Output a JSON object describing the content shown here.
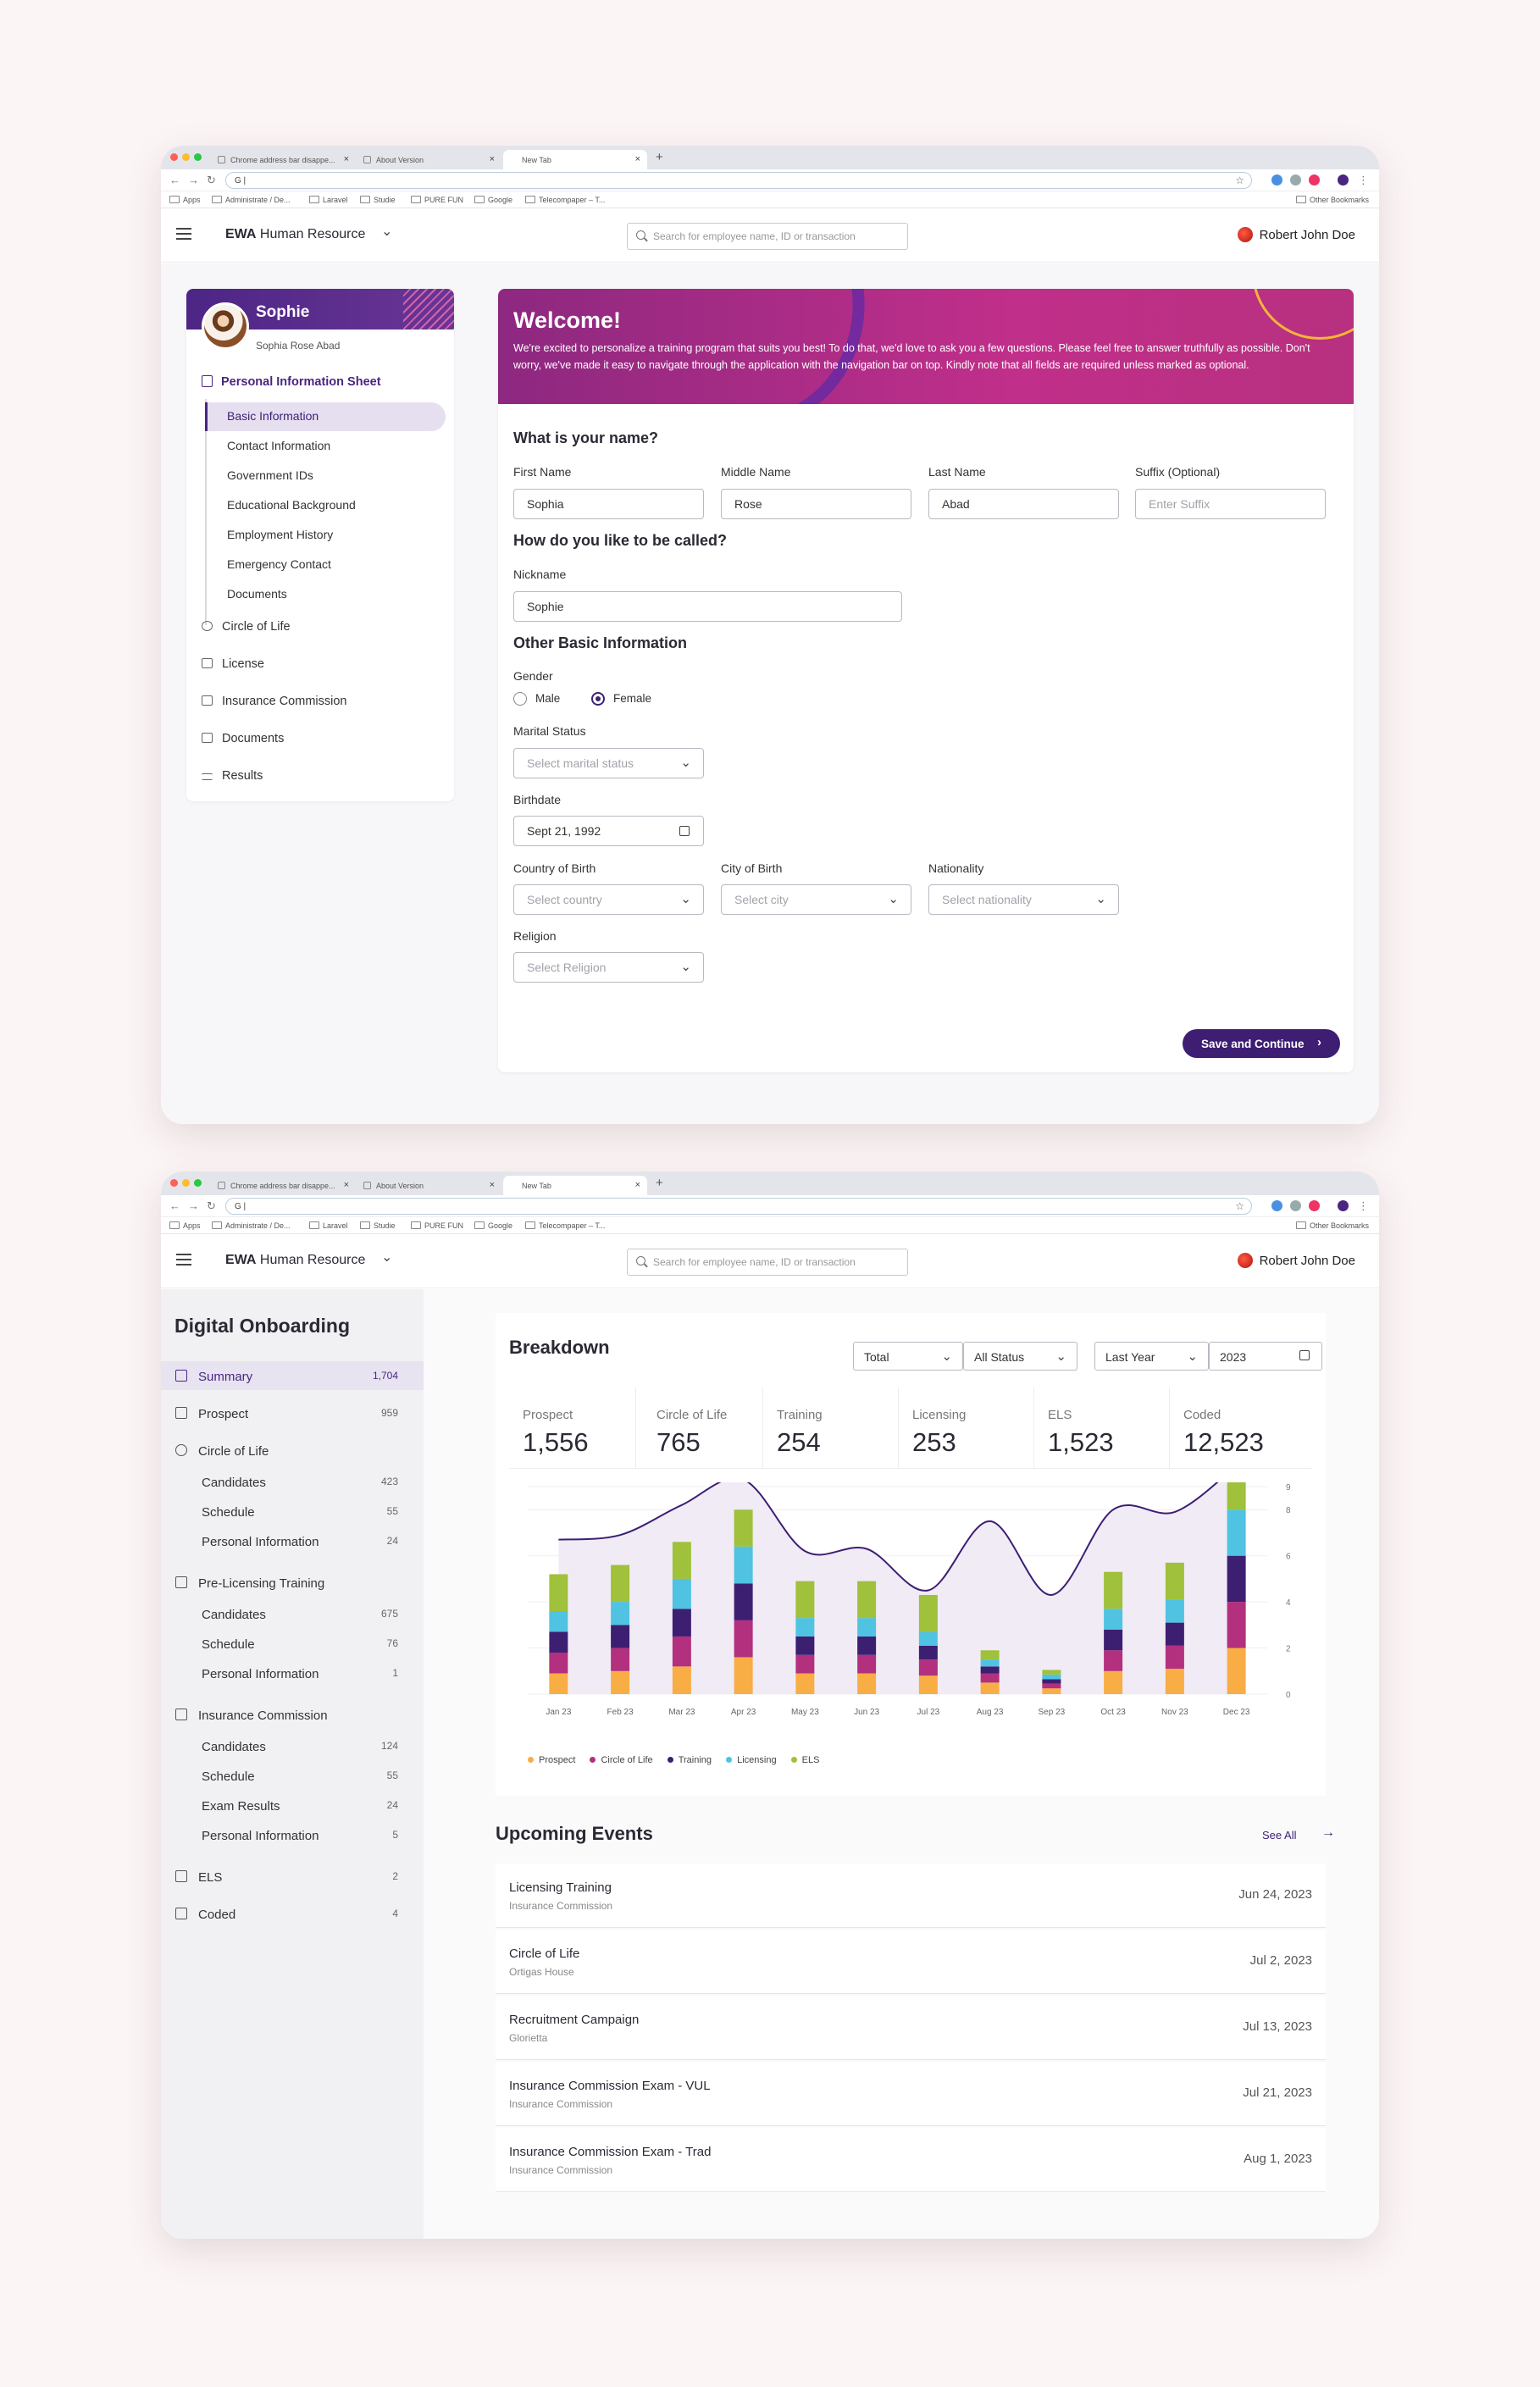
{
  "browser": {
    "tabs": [
      "Chrome address bar disappe...",
      "About Version",
      "New Tab"
    ],
    "address": "G |",
    "bookmarks": [
      "Apps",
      "Administrate / De...",
      "Laravel",
      "Studie",
      "PURE FUN",
      "Google",
      "Telecompaper – T...",
      "Other Bookmarks"
    ]
  },
  "header": {
    "brand_bold": "EWA",
    "brand_rest": "Human Resource",
    "search_placeholder": "Search for employee name, ID or transaction",
    "user_name": "Robert John Doe"
  },
  "profile": {
    "name": "Sophie",
    "full_name": "Sophia Rose Abad",
    "section_title": "Personal Information Sheet",
    "sub_items": [
      "Basic Information",
      "Contact Information",
      "Government IDs",
      "Educational Background",
      "Employment History",
      "Emergency Contact",
      "Documents"
    ],
    "main_items": [
      "Circle of Life",
      "License",
      "Insurance Commission",
      "Documents",
      "Results"
    ]
  },
  "welcome": {
    "title": "Welcome!",
    "text": "We're excited to personalize a training program that suits you best! To do that, we'd love to ask you a few questions. Please feel free to answer truthfully as possible. Don't worry, we've made it easy to navigate through the application with the navigation bar on top. Kindly note that all fields are required unless marked as optional."
  },
  "form": {
    "q_name": "What is your name?",
    "first_label": "First Name",
    "first_value": "Sophia",
    "middle_label": "Middle Name",
    "middle_value": "Rose",
    "last_label": "Last Name",
    "last_value": "Abad",
    "suffix_label": "Suffix (Optional)",
    "suffix_placeholder": "Enter Suffix",
    "q_called": "How do you like to be called?",
    "nick_label": "Nickname",
    "nick_value": "Sophie",
    "q_other": "Other Basic Information",
    "gender_label": "Gender",
    "gender_male": "Male",
    "gender_female": "Female",
    "gender_selected": "Female",
    "marital_label": "Marital Status",
    "marital_placeholder": "Select marital status",
    "birth_label": "Birthdate",
    "birth_value": "Sept 21, 1992",
    "country_label": "Country of Birth",
    "country_placeholder": "Select country",
    "city_label": "City of Birth",
    "city_placeholder": "Select city",
    "nation_label": "Nationality",
    "nation_placeholder": "Select nationality",
    "religion_label": "Religion",
    "religion_placeholder": "Select Religion",
    "save_label": "Save and Continue"
  },
  "onboarding": {
    "title": "Digital Onboarding",
    "nav": [
      {
        "label": "Summary",
        "count": "1,704",
        "level": 0,
        "active": true
      },
      {
        "label": "Prospect",
        "count": "959",
        "level": 0
      },
      {
        "label": "Circle of Life",
        "count": "",
        "level": 0
      },
      {
        "label": "Candidates",
        "count": "423",
        "level": 1
      },
      {
        "label": "Schedule",
        "count": "55",
        "level": 1
      },
      {
        "label": "Personal Information",
        "count": "24",
        "level": 1
      },
      {
        "label": "Pre-Licensing Training",
        "count": "",
        "level": 0
      },
      {
        "label": "Candidates",
        "count": "675",
        "level": 1
      },
      {
        "label": "Schedule",
        "count": "76",
        "level": 1
      },
      {
        "label": "Personal Information",
        "count": "1",
        "level": 1
      },
      {
        "label": "Insurance Commission",
        "count": "",
        "level": 0
      },
      {
        "label": "Candidates",
        "count": "124",
        "level": 1
      },
      {
        "label": "Schedule",
        "count": "55",
        "level": 1
      },
      {
        "label": "Exam Results",
        "count": "24",
        "level": 1
      },
      {
        "label": "Personal Information",
        "count": "5",
        "level": 1
      },
      {
        "label": "ELS",
        "count": "2",
        "level": 0
      },
      {
        "label": "Coded",
        "count": "4",
        "level": 0
      }
    ]
  },
  "breakdown": {
    "title": "Breakdown",
    "filter_total": "Total",
    "filter_status": "All Status",
    "filter_period": "Last Year",
    "filter_year": "2023",
    "stats": [
      {
        "label": "Prospect",
        "value": "1,556"
      },
      {
        "label": "Circle of Life",
        "value": "765"
      },
      {
        "label": "Training",
        "value": "254"
      },
      {
        "label": "Licensing",
        "value": "253"
      },
      {
        "label": "ELS",
        "value": "1,523"
      },
      {
        "label": "Coded",
        "value": "12,523"
      }
    ]
  },
  "colors": {
    "prospect": "#f9ad45",
    "circle": "#b2307e",
    "training": "#3d1f72",
    "licensing": "#4fc3e1",
    "els": "#9fc13b",
    "accent": "#3d1e73"
  },
  "chart_data": {
    "type": "bar",
    "stacked": true,
    "categories": [
      "Jan 23",
      "Feb 23",
      "Mar 23",
      "Apr 23",
      "May 23",
      "Jun 23",
      "Jul 23",
      "Aug 23",
      "Sep 23",
      "Oct 23",
      "Nov 23",
      "Dec 23"
    ],
    "ylim": [
      0,
      9
    ],
    "yticks": [
      "0",
      "2",
      "4",
      "6",
      "8",
      "9"
    ],
    "series": [
      {
        "name": "Prospect",
        "values": [
          0.9,
          1.0,
          1.2,
          1.6,
          0.9,
          0.9,
          0.8,
          0.5,
          0.25,
          1.0,
          1.1,
          2.0
        ]
      },
      {
        "name": "Circle of Life",
        "values": [
          0.9,
          1.0,
          1.3,
          1.6,
          0.8,
          0.8,
          0.7,
          0.4,
          0.2,
          0.9,
          1.0,
          2.0
        ]
      },
      {
        "name": "Training",
        "values": [
          0.9,
          1.0,
          1.2,
          1.6,
          0.8,
          0.8,
          0.6,
          0.3,
          0.2,
          0.9,
          1.0,
          2.0
        ]
      },
      {
        "name": "Licensing",
        "values": [
          0.9,
          1.0,
          1.3,
          1.6,
          0.8,
          0.8,
          0.6,
          0.3,
          0.2,
          0.9,
          1.0,
          2.0
        ]
      },
      {
        "name": "ELS",
        "values": [
          1.6,
          1.6,
          1.6,
          1.6,
          1.6,
          1.6,
          1.6,
          0.4,
          0.2,
          1.6,
          1.6,
          1.6
        ]
      }
    ],
    "trend": [
      6.7,
      6.9,
      8.2,
      9.3,
      6.2,
      6.3,
      4.5,
      7.5,
      4.3,
      8.0,
      7.9,
      9.9
    ],
    "legend": [
      "Prospect",
      "Circle of Life",
      "Training",
      "Licensing",
      "ELS"
    ]
  },
  "events": {
    "title": "Upcoming Events",
    "see_all": "See All",
    "items": [
      {
        "title": "Licensing Training",
        "sub": "Insurance Commission",
        "date": "Jun 24, 2023"
      },
      {
        "title": "Circle of Life",
        "sub": "Ortigas House",
        "date": "Jul 2, 2023"
      },
      {
        "title": "Recruitment Campaign",
        "sub": "Glorietta",
        "date": "Jul 13, 2023"
      },
      {
        "title": "Insurance Commission Exam - VUL",
        "sub": "Insurance Commission",
        "date": "Jul 21, 2023"
      },
      {
        "title": "Insurance Commission Exam - Trad",
        "sub": "Insurance Commission",
        "date": "Aug 1, 2023"
      }
    ]
  }
}
